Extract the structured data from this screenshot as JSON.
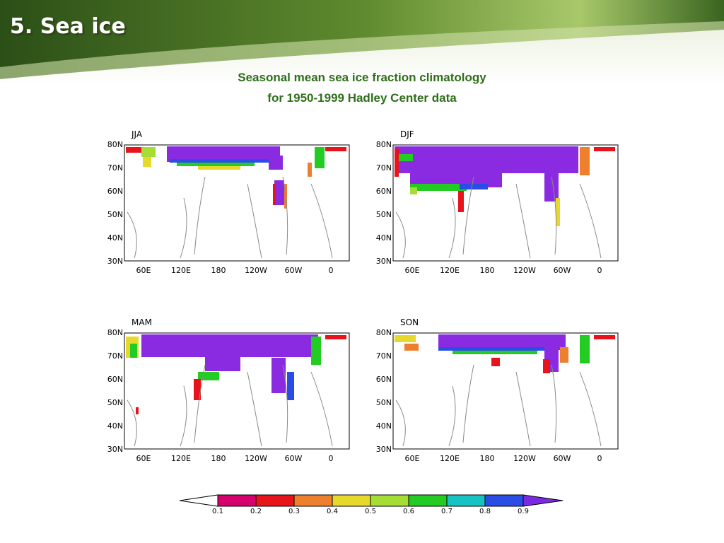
{
  "slide": {
    "title": "5. Sea ice",
    "subtitle_line1": "Seasonal mean sea ice fraction climatology",
    "subtitle_line2": "for 1950-1999 Hadley Center data"
  },
  "colors": {
    "title_text": "#ffffff",
    "subtitle_text": "#2e6e1a",
    "banner_dark": "#2f5a1c",
    "banner_light": "#9dbf5a",
    "coastline": "#8a8a8a",
    "ice_core": "#8a2be2"
  },
  "map": {
    "lat_labels": [
      "80N",
      "70N",
      "60N",
      "50N",
      "40N",
      "30N"
    ],
    "lon_labels": [
      "60E",
      "120E",
      "180",
      "120W",
      "60W",
      "0"
    ],
    "panels": [
      {
        "season": "JJA"
      },
      {
        "season": "DJF"
      },
      {
        "season": "MAM"
      },
      {
        "season": "SON"
      }
    ]
  },
  "colorbar": {
    "labels": [
      "0.1",
      "0.2",
      "0.3",
      "0.4",
      "0.5",
      "0.6",
      "0.7",
      "0.8",
      "0.9"
    ],
    "colors": [
      "#ffffff",
      "#d6006e",
      "#e8141c",
      "#ee7f2d",
      "#e6d92c",
      "#a6dd35",
      "#22cc22",
      "#16c2c2",
      "#2a4de6",
      "#7a2be2"
    ]
  }
}
